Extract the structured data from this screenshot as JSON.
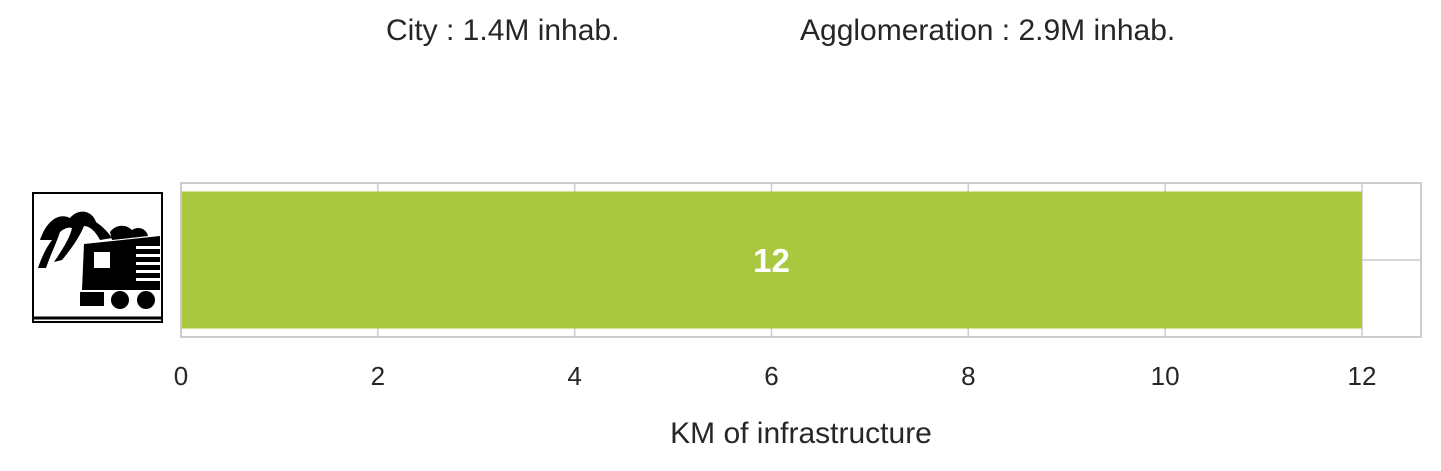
{
  "header": {
    "city": "City : 1.4M inhab.",
    "agglomeration": "Agglomeration : 2.9M inhab."
  },
  "chart_data": {
    "type": "bar",
    "orientation": "horizontal",
    "categories": [
      ""
    ],
    "values": [
      12
    ],
    "data_labels": [
      "12"
    ],
    "xlabel": "KM of infrastructure",
    "ylabel": "",
    "xlim": [
      0,
      12.6
    ],
    "xticks": [
      0,
      2,
      4,
      6,
      8,
      10,
      12
    ],
    "grid": true,
    "bar_color": "#a9c83f",
    "category_icon": "tram-train-icon"
  }
}
